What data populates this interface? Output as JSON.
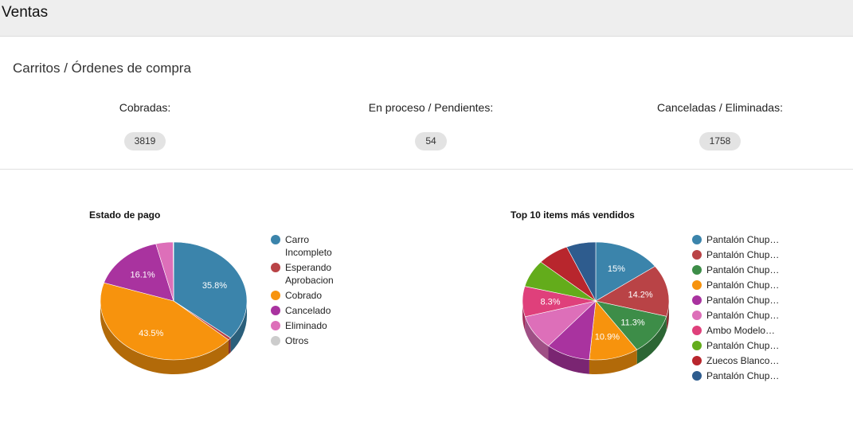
{
  "header": {
    "title": "Ventas"
  },
  "section": {
    "title": "Carritos / Órdenes de compra"
  },
  "stats": [
    {
      "label": "Cobradas:",
      "value": "3819"
    },
    {
      "label": "En proceso / Pendientes:",
      "value": "54"
    },
    {
      "label": "Canceladas / Eliminadas:",
      "value": "1758"
    }
  ],
  "chart_data": [
    {
      "type": "pie",
      "title": "Estado de pago",
      "legend_position": "right",
      "categories": [
        "Carro Incompleto",
        "Esperando Aprobacion",
        "Cobrado",
        "Cancelado",
        "Eliminado",
        "Otros"
      ],
      "values": [
        35.8,
        0.7,
        43.5,
        16.1,
        3.8,
        0.1
      ],
      "labels": [
        "35.8%",
        "",
        "43.5%",
        "16.1%",
        "",
        ""
      ],
      "colors": [
        "#3b84ab",
        "#b94346",
        "#f7930d",
        "#a9339f",
        "#dd6fb9",
        "#cccccc"
      ]
    },
    {
      "type": "pie",
      "title": "Top 10 items más vendidos",
      "legend_position": "right",
      "categories": [
        "Pantalón Chup…",
        "Pantalón Chup…",
        "Pantalón Chup…",
        "Pantalón Chup…",
        "Pantalón Chup…",
        "Pantalón Chup…",
        "Ambo Modelo…",
        "Pantalón Chup…",
        "Zuecos Blanco…",
        "Pantalón Chup…"
      ],
      "values": [
        15,
        14.2,
        11.3,
        10.9,
        9.8,
        9.5,
        8.3,
        7.5,
        7.0,
        6.5
      ],
      "labels": [
        "15%",
        "14.2%",
        "11.3%",
        "10.9%",
        "",
        "",
        "8.3%",
        "",
        "",
        ""
      ],
      "colors": [
        "#3b84ab",
        "#b94346",
        "#3d8d48",
        "#f7930d",
        "#a9339f",
        "#dd6fb9",
        "#df407b",
        "#63ac1b",
        "#b8262d",
        "#2e5c8e"
      ]
    }
  ]
}
